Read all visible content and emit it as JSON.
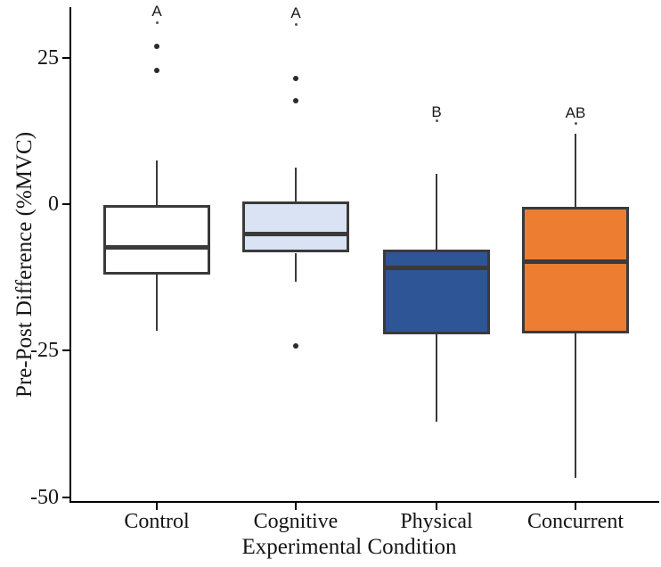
{
  "figure": {
    "background": "#ffffff",
    "axis_color": "#000000",
    "box_stroke": "#3a3a3a",
    "outlier_color": "#2b2b2b"
  },
  "chart_data": {
    "type": "boxplot",
    "title": "",
    "xlabel": "Experimental Condition",
    "ylabel": "Pre-Post Difference (%MVC)",
    "ylim": [
      -55,
      34
    ],
    "yticks": [
      25,
      0,
      -25,
      -50
    ],
    "ytick_labels": [
      "25",
      "0",
      "-25",
      "-50"
    ],
    "grid": "off",
    "legend": "none",
    "categories": [
      "Control",
      "Cognitive",
      "Physical",
      "Concurrent"
    ],
    "series": [
      {
        "name": "Control",
        "fill": "#ffffff",
        "whisker_high": 7.5,
        "q3": -0.2,
        "median": -7.3,
        "q1": -12.0,
        "whisker_low": -21.6,
        "outliers": [
          26.9,
          22.8
        ],
        "sig_label": "A",
        "sig_label_value": 32.9,
        "sig_dot_value": 31.0
      },
      {
        "name": "Cognitive",
        "fill": "#dae3f3",
        "whisker_high": 6.2,
        "q3": 0.4,
        "median": -5.1,
        "q1": -8.3,
        "whisker_low": -13.2,
        "outliers": [
          21.5,
          17.7,
          -24.2
        ],
        "sig_label": "A",
        "sig_label_value": 32.6,
        "sig_dot_value": 30.6
      },
      {
        "name": "Physical",
        "fill": "#2e5596",
        "whisker_high": 5.2,
        "q3": -7.8,
        "median": -10.8,
        "q1": -22.2,
        "whisker_low": -37.1,
        "outliers": [],
        "sig_label": "B",
        "sig_label_value": 15.7,
        "sig_dot_value": 14.2
      },
      {
        "name": "Concurrent",
        "fill": "#ed7d31",
        "whisker_high": 12.0,
        "q3": -0.4,
        "median": -9.8,
        "q1": -22.0,
        "whisker_low": -46.8,
        "outliers": [],
        "sig_label": "AB",
        "sig_label_value": 15.5,
        "sig_dot_value": 13.8
      }
    ]
  }
}
